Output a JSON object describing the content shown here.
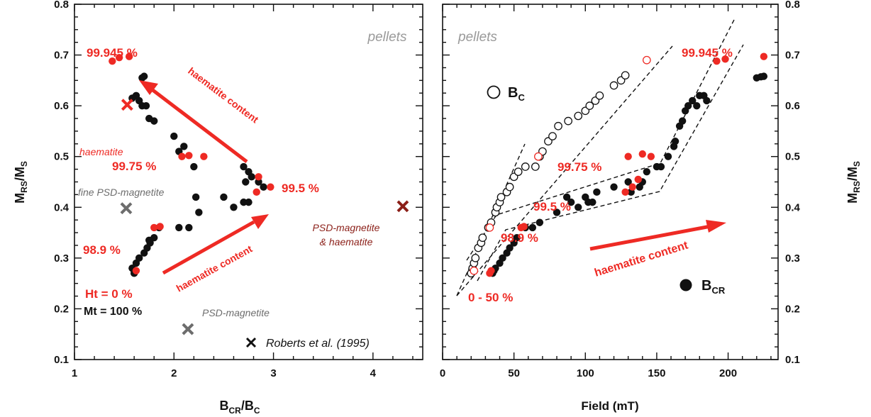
{
  "colors": {
    "red": "#ee2a24",
    "black": "#111111",
    "grey": "#6d6d6d",
    "dark_red": "#8b1f18",
    "pellets_grey": "#9a9a9a"
  },
  "chart_data": [
    {
      "id": "left",
      "type": "scatter",
      "xlabel_main": "B",
      "xlabel_sub": "CR",
      "xlabel_mid": "/B",
      "xlabel_sub2": "C",
      "ylabel_main": "M",
      "ylabel_sub": "RS",
      "ylabel_mid": "/M",
      "ylabel_sub2": "S",
      "xlim": [
        1,
        4.5
      ],
      "ylim": [
        0.1,
        0.8
      ],
      "x_ticks": [
        1,
        2,
        3,
        4
      ],
      "y_ticks": [
        0.1,
        0.2,
        0.3,
        0.4,
        0.5,
        0.6,
        0.7,
        0.8
      ],
      "y_tick_labels": [
        "0.1",
        "0.2",
        "0.3",
        "0.4",
        "0.5",
        "0.6",
        "0.7",
        "0.8"
      ],
      "corner_label": "pellets",
      "series": [
        {
          "color": "black",
          "marker": "filled-circle",
          "points": [
            [
              1.6,
              0.27
            ],
            [
              1.58,
              0.28
            ],
            [
              1.62,
              0.29
            ],
            [
              1.65,
              0.3
            ],
            [
              1.7,
              0.31
            ],
            [
              1.73,
              0.32
            ],
            [
              1.76,
              0.33
            ],
            [
              1.8,
              0.34
            ],
            [
              1.75,
              0.335
            ],
            [
              1.85,
              0.36
            ],
            [
              2.05,
              0.36
            ],
            [
              2.15,
              0.36
            ],
            [
              2.25,
              0.39
            ],
            [
              2.22,
              0.42
            ],
            [
              2.2,
              0.48
            ],
            [
              2.05,
              0.51
            ],
            [
              2.1,
              0.52
            ],
            [
              2.0,
              0.54
            ],
            [
              1.8,
              0.57
            ],
            [
              1.75,
              0.575
            ],
            [
              1.68,
              0.6
            ],
            [
              1.72,
              0.6
            ],
            [
              1.65,
              0.61
            ],
            [
              1.62,
              0.62
            ],
            [
              1.58,
              0.615
            ],
            [
              1.68,
              0.655
            ],
            [
              1.7,
              0.658
            ],
            [
              2.5,
              0.42
            ],
            [
              2.6,
              0.4
            ],
            [
              2.7,
              0.41
            ],
            [
              2.75,
              0.41
            ],
            [
              2.72,
              0.45
            ],
            [
              2.75,
              0.47
            ],
            [
              2.78,
              0.46
            ],
            [
              2.85,
              0.45
            ],
            [
              2.9,
              0.44
            ],
            [
              2.7,
              0.48
            ]
          ]
        },
        {
          "color": "red",
          "marker": "filled-circle",
          "points": [
            [
              1.38,
              0.688
            ],
            [
              1.45,
              0.695
            ],
            [
              1.55,
              0.697
            ],
            [
              1.62,
              0.275
            ],
            [
              1.8,
              0.36
            ],
            [
              1.86,
              0.362
            ],
            [
              2.08,
              0.5
            ],
            [
              2.15,
              0.502
            ],
            [
              2.3,
              0.5
            ],
            [
              2.83,
              0.43
            ],
            [
              2.85,
              0.46
            ],
            [
              2.97,
              0.44
            ]
          ]
        },
        {
          "color": "red",
          "marker": "x",
          "points": [
            [
              1.53,
              0.602
            ]
          ]
        },
        {
          "color": "grey",
          "marker": "x",
          "points": [
            [
              1.52,
              0.398
            ],
            [
              2.14,
              0.16
            ]
          ]
        },
        {
          "color": "dark_red",
          "marker": "x",
          "points": [
            [
              4.3,
              0.402
            ]
          ]
        }
      ],
      "annotations": {
        "top_pct": "99.945 %",
        "haematite": "haematite",
        "pct_9975": "99.75 %",
        "pct_995": "99.5 %",
        "fine_psd": "fine PSD-magnetite",
        "pct_989": "98.9 %",
        "ht0": "Ht = 0 %",
        "mt100": "Mt = 100 %",
        "psd_mag": "PSD-magnetite",
        "psd_haem_1": "PSD-magnetite",
        "psd_haem_2": "& haematite",
        "haem_content_top": "haematite content",
        "haem_content_bottom": "haematite content",
        "legend_roberts": "Roberts et al. (1995)"
      }
    },
    {
      "id": "right",
      "type": "scatter",
      "xlabel": "Field (mT)",
      "ylabel_main": "M",
      "ylabel_sub": "RS",
      "ylabel_mid": "/M",
      "ylabel_sub2": "S",
      "xlim": [
        0,
        235
      ],
      "ylim": [
        0.1,
        0.8
      ],
      "x_ticks": [
        0,
        50,
        100,
        150,
        200
      ],
      "x_tick_labels": [
        "0",
        "50",
        "100",
        "150",
        "200"
      ],
      "y_ticks": [
        0.1,
        0.2,
        0.3,
        0.4,
        0.5,
        0.6,
        0.7,
        0.8
      ],
      "y_tick_labels": [
        "0.1",
        "0.2",
        "0.3",
        "0.4",
        "0.5",
        "0.6",
        "0.7",
        "0.8"
      ],
      "corner_label": "pellets",
      "series": [
        {
          "color": "black",
          "marker": "open-circle",
          "name_main": "B",
          "name_sub": "C",
          "points": [
            [
              20,
              0.27
            ],
            [
              21,
              0.28
            ],
            [
              22,
              0.29
            ],
            [
              23,
              0.3
            ],
            [
              25,
              0.32
            ],
            [
              27,
              0.33
            ],
            [
              28,
              0.34
            ],
            [
              32,
              0.36
            ],
            [
              34,
              0.37
            ],
            [
              37,
              0.39
            ],
            [
              38,
              0.4
            ],
            [
              40,
              0.41
            ],
            [
              41,
              0.42
            ],
            [
              45,
              0.43
            ],
            [
              47,
              0.44
            ],
            [
              50,
              0.46
            ],
            [
              53,
              0.47
            ],
            [
              58,
              0.48
            ],
            [
              65,
              0.48
            ],
            [
              68,
              0.5
            ],
            [
              70,
              0.51
            ],
            [
              74,
              0.53
            ],
            [
              77,
              0.54
            ],
            [
              81,
              0.56
            ],
            [
              88,
              0.57
            ],
            [
              95,
              0.58
            ],
            [
              100,
              0.59
            ],
            [
              103,
              0.6
            ],
            [
              107,
              0.61
            ],
            [
              110,
              0.62
            ],
            [
              120,
              0.64
            ],
            [
              125,
              0.65
            ],
            [
              128,
              0.66
            ]
          ]
        },
        {
          "color": "red",
          "marker": "open-circle",
          "points": [
            [
              22,
              0.275
            ],
            [
              33,
              0.36
            ],
            [
              67,
              0.5
            ],
            [
              143,
              0.69
            ]
          ]
        },
        {
          "color": "black",
          "marker": "filled-circle",
          "name_main": "B",
          "name_sub": "CR",
          "points": [
            [
              35,
              0.27
            ],
            [
              36,
              0.275
            ],
            [
              37,
              0.28
            ],
            [
              40,
              0.29
            ],
            [
              42,
              0.3
            ],
            [
              45,
              0.31
            ],
            [
              47,
              0.32
            ],
            [
              50,
              0.33
            ],
            [
              52,
              0.34
            ],
            [
              58,
              0.36
            ],
            [
              63,
              0.36
            ],
            [
              68,
              0.37
            ],
            [
              80,
              0.39
            ],
            [
              87,
              0.42
            ],
            [
              90,
              0.41
            ],
            [
              95,
              0.4
            ],
            [
              100,
              0.42
            ],
            [
              102,
              0.41
            ],
            [
              105,
              0.41
            ],
            [
              108,
              0.43
            ],
            [
              120,
              0.44
            ],
            [
              130,
              0.45
            ],
            [
              132,
              0.43
            ],
            [
              138,
              0.44
            ],
            [
              140,
              0.45
            ],
            [
              143,
              0.47
            ],
            [
              150,
              0.48
            ],
            [
              153,
              0.48
            ],
            [
              158,
              0.5
            ],
            [
              162,
              0.52
            ],
            [
              163,
              0.53
            ],
            [
              166,
              0.56
            ],
            [
              168,
              0.57
            ],
            [
              170,
              0.59
            ],
            [
              172,
              0.6
            ],
            [
              175,
              0.61
            ],
            [
              178,
              0.6
            ],
            [
              180,
              0.62
            ],
            [
              183,
              0.62
            ],
            [
              185,
              0.61
            ],
            [
              220,
              0.655
            ],
            [
              223,
              0.657
            ],
            [
              225,
              0.658
            ]
          ]
        },
        {
          "color": "red",
          "marker": "filled-circle",
          "points": [
            [
              33,
              0.27
            ],
            [
              34,
              0.275
            ],
            [
              55,
              0.36
            ],
            [
              57,
              0.362
            ],
            [
              128,
              0.43
            ],
            [
              133,
              0.44
            ],
            [
              137,
              0.455
            ],
            [
              130,
              0.5
            ],
            [
              140,
              0.505
            ],
            [
              146,
              0.5
            ],
            [
              192,
              0.688
            ],
            [
              198,
              0.692
            ],
            [
              225,
              0.697
            ]
          ]
        }
      ],
      "annotations": {
        "top_pct": "99.945 %",
        "pct_9975": "99.75 %",
        "pct_995": "99.5 %",
        "pct_989": "98.9 %",
        "pct_0_50": "0 - 50 %",
        "haem_content": "haematite content"
      }
    }
  ]
}
